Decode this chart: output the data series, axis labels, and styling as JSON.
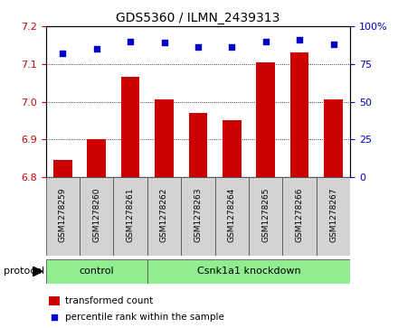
{
  "title": "GDS5360 / ILMN_2439313",
  "samples": [
    "GSM1278259",
    "GSM1278260",
    "GSM1278261",
    "GSM1278262",
    "GSM1278263",
    "GSM1278264",
    "GSM1278265",
    "GSM1278266",
    "GSM1278267"
  ],
  "bar_values": [
    6.845,
    6.9,
    7.065,
    7.005,
    6.97,
    6.95,
    7.105,
    7.13,
    7.005
  ],
  "dot_values": [
    82,
    85,
    90,
    89,
    86,
    86,
    90,
    91,
    88
  ],
  "bar_color": "#cc0000",
  "dot_color": "#0000cc",
  "ylim_left": [
    6.8,
    7.2
  ],
  "ylim_right": [
    0,
    100
  ],
  "yticks_left": [
    6.8,
    6.9,
    7.0,
    7.1,
    7.2
  ],
  "yticks_right": [
    0,
    25,
    50,
    75,
    100
  ],
  "ytick_labels_right": [
    "0",
    "25",
    "50",
    "75",
    "100%"
  ],
  "control_count": 3,
  "group_labels": [
    "control",
    "Csnk1a1 knockdown"
  ],
  "group_color": "#90ee90",
  "legend_bar_label": "transformed count",
  "legend_dot_label": "percentile rank within the sample",
  "protocol_label": "protocol",
  "sample_bg_color": "#d3d3d3",
  "plot_bg_color": "#ffffff",
  "fig_width": 4.4,
  "fig_height": 3.63,
  "dpi": 100
}
